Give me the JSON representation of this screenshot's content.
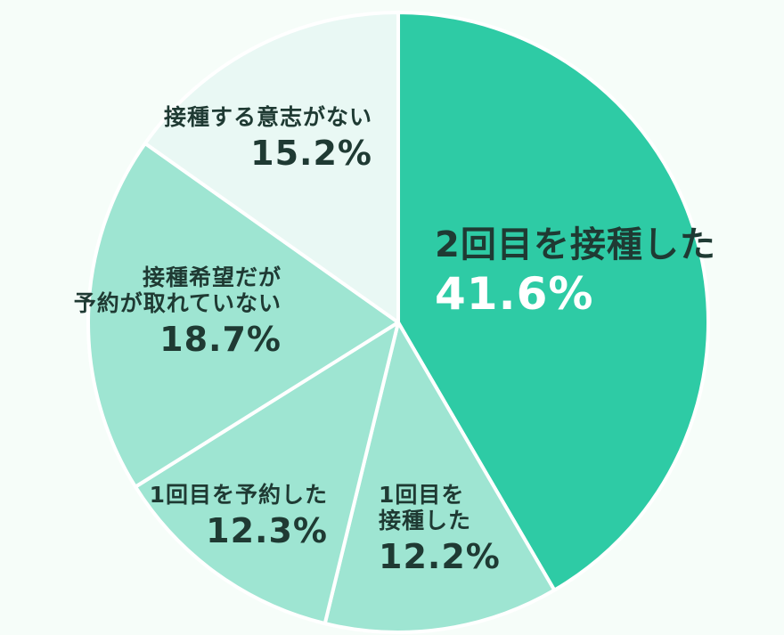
{
  "chart_data": {
    "type": "pie",
    "title": "",
    "start_angle_deg": 0,
    "direction": "clockwise",
    "slices": [
      {
        "label": "2回目を接種した",
        "value": 41.6,
        "value_label": "41.6%",
        "color": "#2ecba5"
      },
      {
        "label": "1回目を接種した",
        "value": 12.2,
        "value_label": "12.2%",
        "color": "#9ee5d2"
      },
      {
        "label": "1回目を予約した",
        "value": 12.3,
        "value_label": "12.3%",
        "color": "#9ee5d2"
      },
      {
        "label": "接種希望だが予約が取れていない",
        "value": 18.7,
        "value_label": "18.7%",
        "color": "#9ee5d2"
      },
      {
        "label": "接種する意志がない",
        "value": 15.2,
        "value_label": "15.2%",
        "color": "#e9f8f4"
      }
    ]
  },
  "labels": {
    "s0_name": "2回目を接種した",
    "s1_name_1": "1回目を",
    "s1_name_2": "接種した",
    "s2_name": "1回目を予約した",
    "s3_name_1": "接種希望だが",
    "s3_name_2": "予約が取れていない",
    "s4_name": "接種する意志がない"
  }
}
